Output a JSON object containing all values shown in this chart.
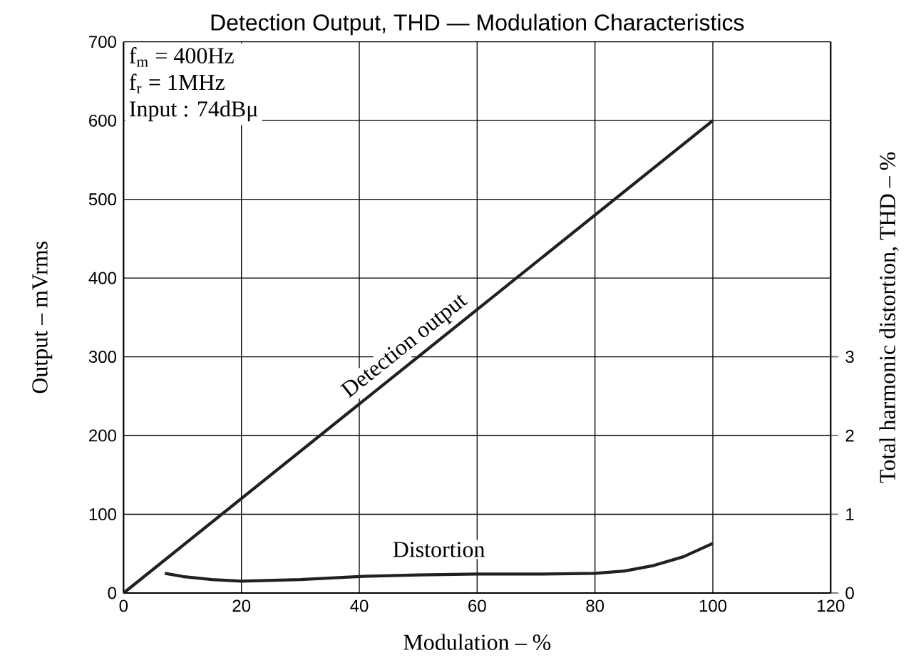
{
  "chart_data": {
    "type": "line",
    "title": "Detection Output, THD — Modulation Characteristics",
    "xlabel": "Modulation  –  %",
    "ylabel": "Output  –  mVrms",
    "y2label": "Total harmonic distortion, THD  –  %",
    "annotations": [
      "f$_{m}$ = 400Hz",
      "f$_{r}$ = 1MHz",
      "Input : 74dBμ"
    ],
    "xlim": [
      0,
      120
    ],
    "xticks": [
      0,
      20,
      40,
      60,
      80,
      100,
      120
    ],
    "ylim": [
      0,
      700
    ],
    "yticks": [
      0,
      100,
      200,
      300,
      400,
      500,
      600,
      700
    ],
    "y2lim": [
      0,
      7
    ],
    "y2ticks": [
      0,
      1,
      2,
      3
    ],
    "grid": true,
    "marker": "none",
    "line_style": "solid",
    "series": [
      {
        "name": "Detection output",
        "color": "#231f20",
        "x": [
          0,
          100
        ],
        "values": [
          0,
          600
        ]
      },
      {
        "name": "Distortion",
        "color": "#231f20",
        "axis": "y2",
        "x": [
          7,
          10,
          15,
          20,
          30,
          40,
          50,
          60,
          70,
          80,
          85,
          90,
          95,
          100
        ],
        "values": [
          0.25,
          0.21,
          0.17,
          0.15,
          0.17,
          0.21,
          0.23,
          0.24,
          0.24,
          0.25,
          0.28,
          0.35,
          0.46,
          0.63
        ]
      }
    ]
  }
}
